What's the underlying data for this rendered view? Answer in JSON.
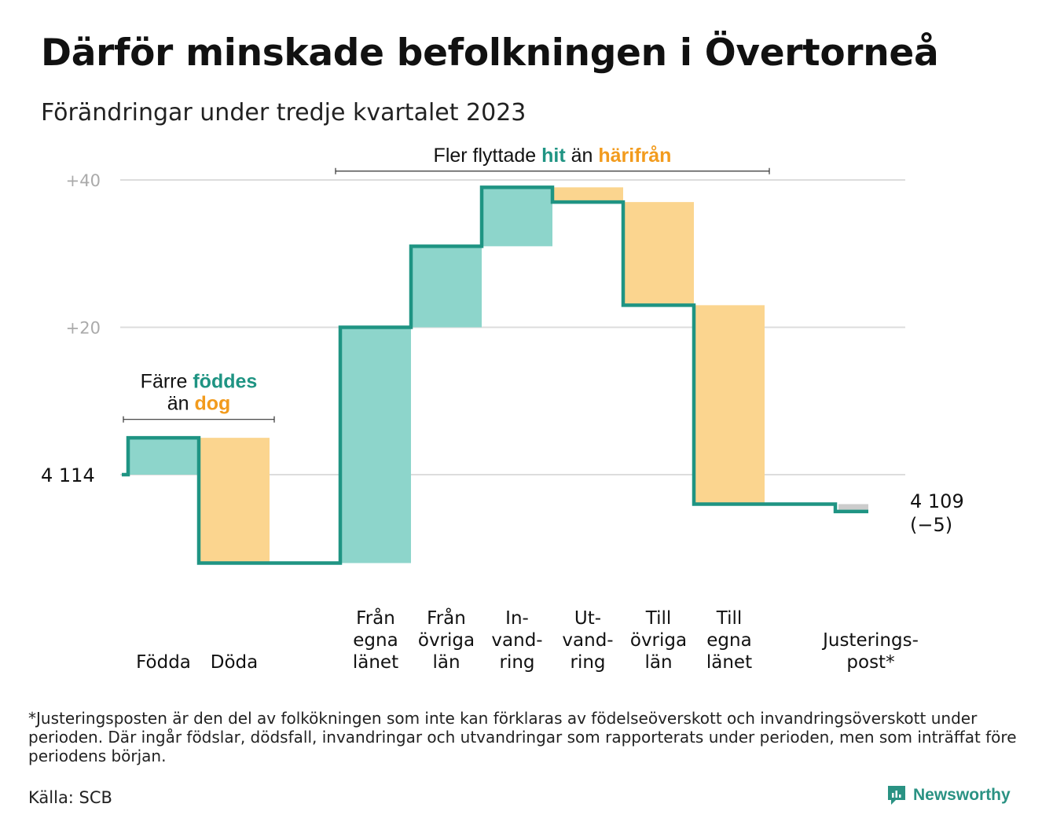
{
  "title": "Därför minskade befolkningen i Övertorneå",
  "subtitle": "Förändringar under tredje kvartalet 2023",
  "footnote": "*Justeringsposten är den del av folkökningen som inte kan förklaras av födelseöverskott och invandringsöverskott under perioden. Där ingår födslar, dödsfall, invandringar och utvandringar som rapporterats under perioden, men som inträffat före periodens början.",
  "source": "Källa: SCB",
  "brand": {
    "name": "Newsworthy",
    "icon": "newsworthy-logo-icon"
  },
  "colors": {
    "line": "#1f9483",
    "positive": "#8dd5cb",
    "negative": "#fbd58f",
    "adjustment": "#cccccc",
    "grid": "#dddddd",
    "accent_teal": "#1f9483",
    "accent_orange": "#f29b1d"
  },
  "chart_data": {
    "type": "waterfall",
    "baseline": 4114,
    "start_label": "4  114",
    "end_label_lines": [
      "4 109",
      "(−5)"
    ],
    "y_ticks": [
      {
        "label": "+40",
        "offset": 40
      },
      {
        "label": "+20",
        "offset": 20
      }
    ],
    "ylim": [
      -12,
      40
    ],
    "steps": [
      {
        "label_lines": [
          "Födda"
        ],
        "change": 5,
        "kind": "positive"
      },
      {
        "label_lines": [
          "Döda"
        ],
        "change": -17,
        "kind": "negative"
      },
      {
        "label_lines": [
          ""
        ],
        "change": 0,
        "kind": "spacer"
      },
      {
        "label_lines": [
          "Från",
          "egna",
          "länet"
        ],
        "change": 32,
        "kind": "positive"
      },
      {
        "label_lines": [
          "Från",
          "övriga",
          "län"
        ],
        "change": 11,
        "kind": "positive"
      },
      {
        "label_lines": [
          "In-",
          "vand-",
          "ring"
        ],
        "change": 8,
        "kind": "positive"
      },
      {
        "label_lines": [
          "Ut-",
          "vand-",
          "ring"
        ],
        "change": -2,
        "kind": "negative"
      },
      {
        "label_lines": [
          "Till",
          "övriga",
          "län"
        ],
        "change": -14,
        "kind": "negative"
      },
      {
        "label_lines": [
          "Till",
          "egna",
          "länet"
        ],
        "change": -27,
        "kind": "negative"
      },
      {
        "label_lines": [
          ""
        ],
        "change": 0,
        "kind": "spacer"
      },
      {
        "label_lines": [
          "Justerings-",
          "post*"
        ],
        "change": -1,
        "kind": "adjustment"
      }
    ],
    "annotations": [
      {
        "from_step": 0,
        "to_step": 1,
        "level": 7.5,
        "lines": [
          [
            {
              "text": "Färre ",
              "style": "plain"
            },
            {
              "text": "föddes",
              "style": "teal"
            }
          ],
          [
            {
              "text": "än ",
              "style": "plain"
            },
            {
              "text": "dog",
              "style": "orange"
            }
          ]
        ]
      },
      {
        "from_step": 3,
        "to_step": 8,
        "level": 41.2,
        "lines": [
          [
            {
              "text": "Fler flyttade ",
              "style": "plain"
            },
            {
              "text": "hit",
              "style": "teal"
            },
            {
              "text": "  än ",
              "style": "plain"
            },
            {
              "text": "härifrån",
              "style": "orange"
            }
          ]
        ]
      }
    ]
  }
}
